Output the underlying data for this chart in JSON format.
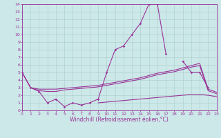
{
  "x": [
    0,
    1,
    2,
    3,
    4,
    5,
    6,
    7,
    8,
    9,
    10,
    11,
    12,
    13,
    14,
    15,
    16,
    17,
    18,
    19,
    20,
    21,
    22,
    23
  ],
  "line_main": [
    5,
    3,
    2.5,
    1,
    1.5,
    0.5,
    1,
    0.7,
    1.0,
    1.5,
    5,
    8,
    8.5,
    10,
    11.5,
    14,
    14,
    7.5,
    null,
    null,
    null,
    null,
    null,
    null
  ],
  "line_main2": [
    null,
    null,
    null,
    null,
    null,
    null,
    null,
    null,
    null,
    null,
    null,
    null,
    null,
    null,
    null,
    null,
    null,
    null,
    null,
    6.5,
    5.0,
    5.0,
    3.0,
    null
  ],
  "line_upper": [
    5.0,
    3.0,
    2.8,
    2.8,
    2.8,
    2.9,
    3.0,
    3.1,
    3.2,
    3.3,
    3.5,
    3.7,
    3.9,
    4.1,
    4.3,
    4.6,
    4.9,
    5.1,
    5.3,
    5.6,
    5.9,
    6.2,
    2.8,
    2.4
  ],
  "line_lower": [
    5.0,
    3.0,
    2.6,
    2.5,
    2.5,
    2.7,
    2.8,
    2.9,
    3.0,
    3.1,
    3.3,
    3.5,
    3.7,
    3.9,
    4.1,
    4.4,
    4.7,
    4.9,
    5.1,
    5.4,
    5.7,
    5.9,
    2.6,
    2.2
  ],
  "line_bottom": [
    null,
    null,
    null,
    null,
    null,
    null,
    null,
    null,
    null,
    1.0,
    1.1,
    1.2,
    1.3,
    1.4,
    1.5,
    1.6,
    1.7,
    1.8,
    1.9,
    2.0,
    2.1,
    2.1,
    2.0,
    1.8
  ],
  "xlabel": "Windchill (Refroidissement éolien,°C)",
  "xlim": [
    0,
    23
  ],
  "ylim": [
    0,
    14
  ],
  "yticks": [
    0,
    1,
    2,
    3,
    4,
    5,
    6,
    7,
    8,
    9,
    10,
    11,
    12,
    13,
    14
  ],
  "xticks": [
    0,
    1,
    2,
    3,
    4,
    5,
    6,
    7,
    8,
    9,
    10,
    11,
    12,
    13,
    14,
    15,
    16,
    17,
    18,
    19,
    20,
    21,
    22,
    23
  ],
  "line_color": "#993399",
  "bg_color": "#cce8e8",
  "grid_color": "#aacccc",
  "tick_fontsize": 4.5,
  "xlabel_fontsize": 5.5
}
